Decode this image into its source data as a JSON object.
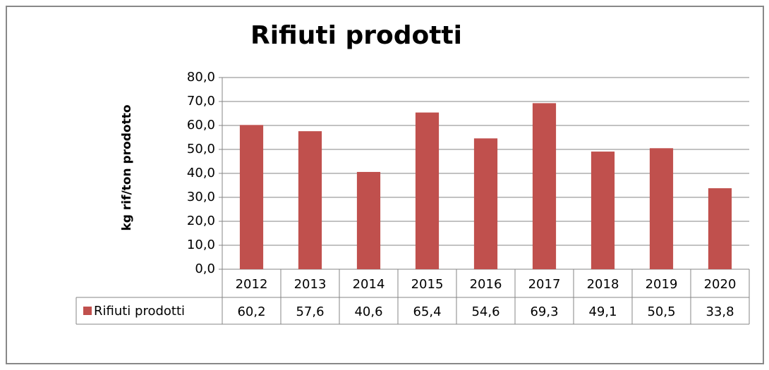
{
  "chart_data": {
    "type": "bar",
    "title": "Rifiuti prodotti",
    "y_label": "kg rif/ton prodotto",
    "categories": [
      "2012",
      "2013",
      "2014",
      "2015",
      "2016",
      "2017",
      "2018",
      "2019",
      "2020"
    ],
    "series": [
      {
        "name": "Rifiuti prodotti",
        "color": "#c0504d",
        "values": [
          60.2,
          57.6,
          40.6,
          65.4,
          54.6,
          69.3,
          49.1,
          50.5,
          33.8
        ],
        "value_labels": [
          "60,2",
          "57,6",
          "40,6",
          "65,4",
          "54,6",
          "69,3",
          "49,1",
          "50,5",
          "33,8"
        ]
      }
    ],
    "ylim": [
      0,
      80
    ],
    "yticks": [
      {
        "value": 0,
        "label": "0,0"
      },
      {
        "value": 10,
        "label": "10,0"
      },
      {
        "value": 20,
        "label": "20,0"
      },
      {
        "value": 30,
        "label": "30,0"
      },
      {
        "value": 40,
        "label": "40,0"
      },
      {
        "value": 50,
        "label": "50,0"
      },
      {
        "value": 60,
        "label": "60,0"
      },
      {
        "value": 70,
        "label": "70,0"
      },
      {
        "value": 80,
        "label": "80,0"
      }
    ],
    "grid": true
  }
}
